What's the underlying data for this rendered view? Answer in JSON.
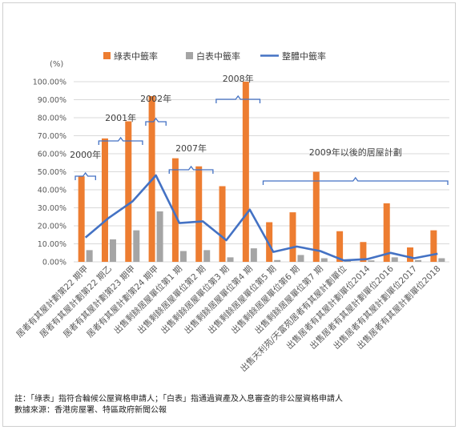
{
  "chart_data": {
    "type": "bar",
    "yunit": "(%)",
    "ylim": [
      0,
      100
    ],
    "ytick_labels": [
      "0.00%",
      "10.00%",
      "20.00%",
      "30.00%",
      "40.00%",
      "50.00%",
      "60.00%",
      "70.00%",
      "80.00%",
      "90.00%",
      "100.00%"
    ],
    "grid": true,
    "legend_position": "top",
    "categories": [
      "居者有其屋計劃第22 期甲",
      "居者有其屋計劃第22 期乙",
      "居者有其屋計劃第23 期甲",
      "居者有其屋計劃第24 期甲",
      "出售剩餘居屋單位第1 期",
      "出售剩餘居屋單位第2 期",
      "出售剩餘居屋單位第3 期",
      "出售剩餘居屋單位第4 期",
      "出售剩餘居屋單位第5 期",
      "出售剩餘居屋單位第6 期",
      "出售剩餘居屋單位第7 期",
      "出售天利苑/天富苑居者有其屋計劃單位",
      "出售居者有其屋計劃單位2014",
      "出售居者有其屋計劃單位2016",
      "出售居者有其屋計劃單位2017",
      "出售居者有其屋計劃單位2018"
    ],
    "series": [
      {
        "name": "綠表中籤率",
        "kind": "bar",
        "color": "#ED7D31",
        "values": [
          47.5,
          68.5,
          78,
          92,
          57.5,
          53,
          42,
          100,
          22,
          27.5,
          50,
          17,
          11,
          32.5,
          8,
          17.5
        ]
      },
      {
        "name": "白表中籤率",
        "kind": "bar",
        "color": "#A5A5A5",
        "values": [
          6.5,
          12.5,
          17.5,
          28,
          6,
          6.5,
          2.5,
          7.5,
          1,
          3.8,
          2,
          0.5,
          0.8,
          2.5,
          1,
          2
        ]
      },
      {
        "name": "整體中籤率",
        "kind": "line",
        "color": "#4472C4",
        "values": [
          13.5,
          24.5,
          33.5,
          48,
          21.5,
          22.5,
          12,
          29,
          5.5,
          8.5,
          6,
          0.8,
          1.5,
          5,
          2,
          4.5
        ]
      }
    ],
    "annotations": [
      {
        "text": "2000年",
        "from": 0,
        "to": 0
      },
      {
        "text": "2001年",
        "from": 1,
        "to": 2
      },
      {
        "text": "2002年",
        "from": 3,
        "to": 3
      },
      {
        "text": "2007年",
        "from": 4,
        "to": 5
      },
      {
        "text": "2008年",
        "from": 6,
        "to": 7
      },
      {
        "text": "2009年以後的居屋計劃",
        "from": 8,
        "to": 15
      }
    ]
  },
  "notes": {
    "line1": "註：「綠表」指符合輪候公屋資格申請人；「白表」指通過資產及入息審查的非公屋資格申請人",
    "line2": "數據來源：香港房屋署、特區政府新聞公報"
  }
}
